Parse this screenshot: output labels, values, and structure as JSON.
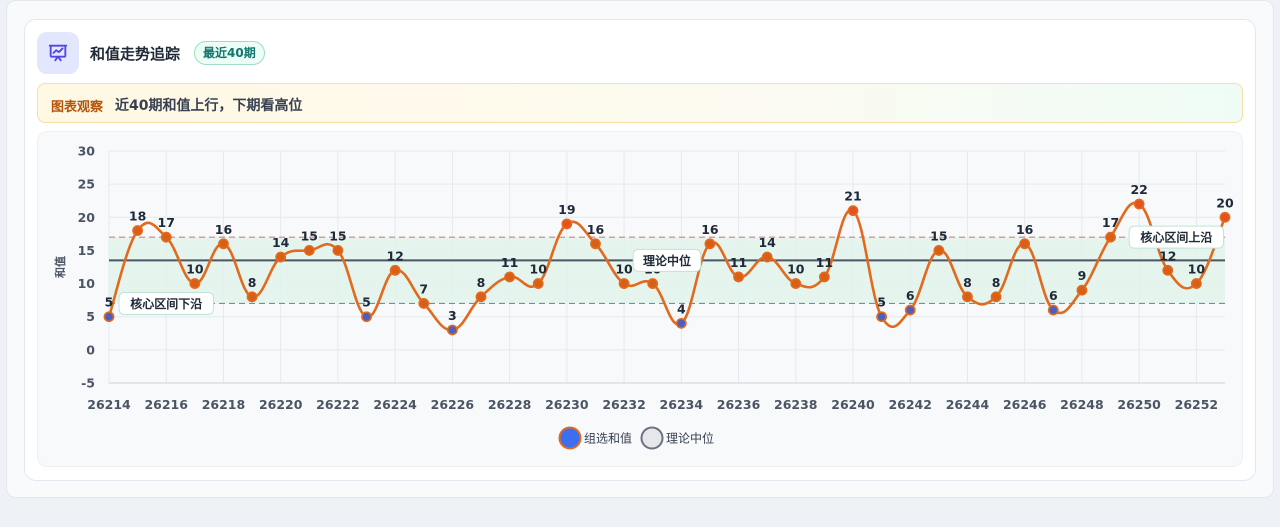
{
  "header": {
    "title": "和值走势追踪",
    "badge": "最近40期",
    "icon": "chart-presentation-icon"
  },
  "observation": {
    "label": "图表观察",
    "text": "近40期和值上行，下期看高位"
  },
  "colors": {
    "line": "#e06a1e",
    "point_fill": "#d95f17",
    "low_point_fill": "#4c5fbf",
    "median_line": "#4b5563",
    "upper_dashed": "#e07a7a",
    "lower_dashed": "#6a8fbf",
    "band_fill": "#dff3ea"
  },
  "chart_data": {
    "type": "line",
    "title": "",
    "xlabel": "",
    "ylabel": "和值",
    "ylim": [
      -5,
      30
    ],
    "yticks": [
      -5,
      0,
      5,
      10,
      15,
      20,
      25,
      30
    ],
    "xticks": [
      "26214",
      "26216",
      "26218",
      "26220",
      "26222",
      "26224",
      "26226",
      "26228",
      "26230",
      "26232",
      "26234",
      "26236",
      "26238",
      "26240",
      "26242",
      "26244",
      "26246",
      "26248",
      "26250",
      "26252"
    ],
    "grid": true,
    "legend": "bottom",
    "series": [
      {
        "name": "组选和值",
        "x": [
          26214,
          26215,
          26216,
          26217,
          26218,
          26219,
          26220,
          26221,
          26222,
          26223,
          26224,
          26225,
          26226,
          26227,
          26228,
          26229,
          26230,
          26231,
          26232,
          26233,
          26234,
          26235,
          26236,
          26237,
          26238,
          26239,
          26240,
          26241,
          26242,
          26243,
          26244,
          26245,
          26246,
          26247,
          26248,
          26249,
          26250,
          26251,
          26252,
          26253
        ],
        "values": [
          5,
          18,
          17,
          10,
          16,
          8,
          14,
          15,
          15,
          5,
          12,
          7,
          3,
          8,
          11,
          10,
          19,
          16,
          10,
          10,
          4,
          16,
          11,
          14,
          10,
          11,
          21,
          5,
          6,
          15,
          8,
          8,
          16,
          6,
          9,
          17,
          22,
          12,
          10,
          20
        ]
      }
    ],
    "reference_lines": [
      {
        "name": "理论中位",
        "value": 13.5
      },
      {
        "name": "核心区间上沿",
        "value": 17
      },
      {
        "name": "核心区间下沿",
        "value": 7
      }
    ],
    "annotations": [
      {
        "text": "核心区间下沿",
        "x": 26216,
        "y": 7
      },
      {
        "text": "理论中位",
        "x": 26233.5,
        "y": 13.5
      },
      {
        "text": "核心区间上沿",
        "x": 26251.3,
        "y": 17
      }
    ],
    "legend_items": [
      {
        "name": "组选和值",
        "fill": "#3b6ef0",
        "stroke": "#e06a1e"
      },
      {
        "name": "理论中位",
        "fill": "#e5e7eb",
        "stroke": "#6b7280"
      }
    ]
  }
}
